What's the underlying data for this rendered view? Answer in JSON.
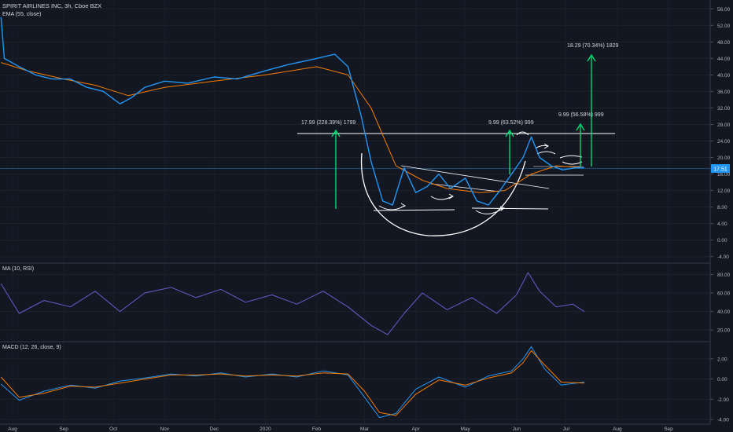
{
  "header": {
    "symbol": "SPIRIT AIRLINES INC, 3h, Cboe BZX",
    "ema_label": "EMA (55, close)"
  },
  "price_label": "17.51",
  "annotations": {
    "target_big": "17.99 (228.39%) 1799",
    "target_mid": "9.99 (63.52%) 999",
    "target_right": "9.99 (56.58%) 999",
    "target_top": "18.29 (70.34%) 1829"
  },
  "rsi_pane": {
    "label": "MA (10, RSI)"
  },
  "macd_pane": {
    "label": "MACD (12, 26, close, 9)"
  },
  "colors": {
    "background": "#131722",
    "price_line": "#2196f3",
    "ema_line": "#f57c00",
    "rsi_line": "#6a5acd",
    "macd_line": "#2196f3",
    "signal_line": "#f57c00",
    "arrow": "#00e676",
    "drawing": "#ffffff"
  },
  "chart_data": [
    {
      "type": "line",
      "title": "SPIRIT AIRLINES INC, 3h, Cboe BZX",
      "x_ticks": [
        "Aug",
        "Sep",
        "Oct",
        "Nov",
        "Dec",
        "2020",
        "Feb",
        "Mar",
        "Apr",
        "May",
        "Jun",
        "Jul",
        "Aug",
        "Sep"
      ],
      "y_ticks": [
        56,
        52,
        48,
        44,
        40,
        36,
        32,
        28,
        24,
        20,
        16,
        12,
        8,
        4,
        0,
        -4
      ],
      "ylim": [
        -5,
        57
      ],
      "series": [
        {
          "name": "EMA (55, close)",
          "x": [
            "2019-07-25",
            "2019-08-10",
            "2019-09-01",
            "2019-09-20",
            "2019-10-10",
            "2019-11-01",
            "2019-12-01",
            "2020-01-01",
            "2020-02-01",
            "2020-02-20",
            "2020-03-05",
            "2020-03-20",
            "2020-04-05",
            "2020-04-20",
            "2020-05-10",
            "2020-05-25",
            "2020-06-10",
            "2020-06-25",
            "2020-07-10"
          ],
          "values": [
            43,
            41,
            39,
            37.5,
            35,
            37,
            38.5,
            40,
            42,
            40,
            32,
            18,
            14.5,
            12.5,
            11.5,
            12,
            16,
            18,
            17.6
          ]
        },
        {
          "name": "Price",
          "x": [
            "2019-07-25",
            "2019-07-27",
            "2019-08-05",
            "2019-08-15",
            "2019-08-25",
            "2019-09-05",
            "2019-09-15",
            "2019-09-25",
            "2019-10-05",
            "2019-10-12",
            "2019-10-20",
            "2019-11-01",
            "2019-11-15",
            "2019-12-01",
            "2019-12-15",
            "2020-01-01",
            "2020-01-15",
            "2020-02-01",
            "2020-02-12",
            "2020-02-20",
            "2020-02-28",
            "2020-03-05",
            "2020-03-12",
            "2020-03-18",
            "2020-03-25",
            "2020-04-01",
            "2020-04-08",
            "2020-04-15",
            "2020-04-22",
            "2020-05-01",
            "2020-05-08",
            "2020-05-15",
            "2020-05-22",
            "2020-05-29",
            "2020-06-05",
            "2020-06-10",
            "2020-06-15",
            "2020-06-22",
            "2020-06-29",
            "2020-07-06",
            "2020-07-12"
          ],
          "values": [
            54,
            44,
            42,
            40,
            39,
            39,
            37,
            36,
            33,
            34.5,
            37,
            38.5,
            38,
            39.5,
            39,
            41,
            42.5,
            44,
            45,
            42,
            30,
            19,
            9.5,
            8.5,
            17.5,
            11.5,
            13,
            16,
            12.5,
            15,
            9.5,
            8.5,
            12,
            16,
            20,
            25,
            20,
            18,
            17,
            17.5,
            17.5
          ]
        }
      ],
      "levels": [
        26,
        17.7,
        8
      ]
    },
    {
      "type": "line",
      "title": "MA (10, RSI)",
      "y_ticks": [
        80,
        60,
        40,
        20
      ],
      "ylim": [
        10,
        88
      ],
      "series": [
        {
          "name": "MA (10, RSI)",
          "x": [
            "2019-07-25",
            "2019-08-05",
            "2019-08-20",
            "2019-09-05",
            "2019-09-20",
            "2019-10-05",
            "2019-10-20",
            "2019-11-05",
            "2019-11-20",
            "2019-12-05",
            "2019-12-20",
            "2020-01-05",
            "2020-01-20",
            "2020-02-05",
            "2020-02-20",
            "2020-03-05",
            "2020-03-15",
            "2020-03-25",
            "2020-04-05",
            "2020-04-20",
            "2020-05-05",
            "2020-05-20",
            "2020-06-01",
            "2020-06-08",
            "2020-06-15",
            "2020-06-25",
            "2020-07-05",
            "2020-07-12"
          ],
          "values": [
            70,
            38,
            52,
            45,
            62,
            40,
            60,
            66,
            55,
            64,
            50,
            58,
            48,
            62,
            45,
            25,
            15,
            38,
            60,
            42,
            55,
            38,
            58,
            82,
            62,
            45,
            48,
            40
          ]
        }
      ]
    },
    {
      "type": "line",
      "title": "MACD (12, 26, close, 9)",
      "y_ticks": [
        2,
        0,
        -2,
        -4
      ],
      "ylim": [
        -4.3,
        3.3
      ],
      "series": [
        {
          "name": "MACD",
          "x": [
            "2019-07-25",
            "2019-08-05",
            "2019-08-20",
            "2019-09-05",
            "2019-09-20",
            "2019-10-05",
            "2019-10-20",
            "2019-11-05",
            "2019-11-20",
            "2019-12-05",
            "2019-12-20",
            "2020-01-05",
            "2020-01-20",
            "2020-02-05",
            "2020-02-20",
            "2020-03-01",
            "2020-03-10",
            "2020-03-20",
            "2020-04-01",
            "2020-04-15",
            "2020-05-01",
            "2020-05-15",
            "2020-05-29",
            "2020-06-05",
            "2020-06-10",
            "2020-06-18",
            "2020-06-28",
            "2020-07-12"
          ],
          "values": [
            -0.5,
            -2.1,
            -1.2,
            -0.6,
            -0.9,
            -0.2,
            0.1,
            0.5,
            0.3,
            0.6,
            0.2,
            0.5,
            0.2,
            0.8,
            0.4,
            -1.8,
            -3.8,
            -3.4,
            -1.0,
            0.2,
            -0.8,
            0.3,
            0.8,
            2.0,
            3.2,
            1.0,
            -0.6,
            -0.3
          ]
        },
        {
          "name": "Signal",
          "x": [
            "2019-07-25",
            "2019-08-05",
            "2019-08-20",
            "2019-09-05",
            "2019-09-20",
            "2019-10-05",
            "2019-10-20",
            "2019-11-05",
            "2019-11-20",
            "2019-12-05",
            "2019-12-20",
            "2020-01-05",
            "2020-01-20",
            "2020-02-05",
            "2020-02-20",
            "2020-03-01",
            "2020-03-10",
            "2020-03-20",
            "2020-04-01",
            "2020-04-15",
            "2020-05-01",
            "2020-05-15",
            "2020-05-29",
            "2020-06-05",
            "2020-06-10",
            "2020-06-18",
            "2020-06-28",
            "2020-07-12"
          ],
          "values": [
            0.2,
            -1.8,
            -1.4,
            -0.7,
            -0.8,
            -0.4,
            0.0,
            0.4,
            0.4,
            0.5,
            0.3,
            0.4,
            0.3,
            0.6,
            0.5,
            -1.2,
            -3.3,
            -3.6,
            -1.5,
            -0.1,
            -0.6,
            0.1,
            0.6,
            1.6,
            2.8,
            1.4,
            -0.3,
            -0.4
          ]
        }
      ]
    }
  ]
}
